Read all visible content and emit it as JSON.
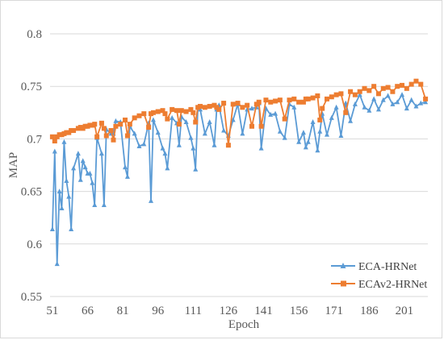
{
  "chart_data": {
    "type": "line",
    "title": "",
    "xlabel": "Epoch",
    "ylabel": "MAP",
    "xlim": [
      50,
      211
    ],
    "ylim": [
      0.55,
      0.8
    ],
    "x_ticks": [
      51,
      66,
      81,
      96,
      111,
      126,
      141,
      156,
      171,
      186,
      201
    ],
    "y_ticks": [
      0.55,
      0.6,
      0.65,
      0.7,
      0.75,
      0.8
    ],
    "grid": "horizontal",
    "legend": "bottom-right",
    "series": [
      {
        "name": "ECA-HRNet",
        "color": "#5b9bd5",
        "marker": "triangle",
        "x": [
          51,
          52,
          53,
          54,
          55,
          56,
          57,
          58,
          59,
          60,
          62,
          63,
          64,
          65,
          66,
          67,
          68,
          69,
          70,
          72,
          73,
          74,
          76,
          77,
          78,
          80,
          82,
          83,
          84,
          86,
          88,
          90,
          92,
          93,
          94,
          96,
          98,
          99,
          100,
          102,
          104,
          105,
          106,
          108,
          110,
          111,
          112,
          113,
          114,
          116,
          118,
          120,
          121,
          122,
          124,
          126,
          128,
          130,
          132,
          134,
          136,
          138,
          139,
          140,
          142,
          144,
          146,
          148,
          150,
          152,
          154,
          156,
          158,
          159,
          160,
          162,
          164,
          165,
          166,
          168,
          170,
          172,
          174,
          176,
          178,
          180,
          182,
          184,
          186,
          188,
          190,
          192,
          194,
          196,
          198,
          200,
          202,
          204,
          206,
          208,
          210
        ],
        "values": [
          0.614,
          0.688,
          0.581,
          0.65,
          0.634,
          0.697,
          0.66,
          0.645,
          0.614,
          0.672,
          0.686,
          0.661,
          0.679,
          0.673,
          0.667,
          0.667,
          0.658,
          0.637,
          0.701,
          0.686,
          0.637,
          0.709,
          0.705,
          0.705,
          0.717,
          0.716,
          0.673,
          0.664,
          0.712,
          0.705,
          0.693,
          0.695,
          0.715,
          0.641,
          0.718,
          0.706,
          0.691,
          0.686,
          0.672,
          0.72,
          0.715,
          0.694,
          0.721,
          0.716,
          0.701,
          0.691,
          0.671,
          0.73,
          0.728,
          0.705,
          0.716,
          0.694,
          0.728,
          0.732,
          0.708,
          0.703,
          0.718,
          0.733,
          0.705,
          0.728,
          0.729,
          0.73,
          0.734,
          0.691,
          0.729,
          0.723,
          0.724,
          0.707,
          0.701,
          0.733,
          0.73,
          0.697,
          0.706,
          0.692,
          0.697,
          0.716,
          0.689,
          0.707,
          0.724,
          0.704,
          0.72,
          0.73,
          0.703,
          0.734,
          0.717,
          0.733,
          0.742,
          0.73,
          0.727,
          0.738,
          0.728,
          0.737,
          0.741,
          0.733,
          0.735,
          0.742,
          0.729,
          0.737,
          0.731,
          0.734,
          0.735
        ]
      },
      {
        "name": "ECAv2-HRNet",
        "color": "#ed7d31",
        "marker": "square",
        "x": [
          51,
          52,
          53,
          54,
          55,
          56,
          57,
          58,
          59,
          60,
          62,
          63,
          64,
          65,
          66,
          67,
          68,
          69,
          70,
          72,
          73,
          74,
          76,
          77,
          78,
          80,
          82,
          83,
          84,
          86,
          88,
          90,
          92,
          93,
          94,
          96,
          98,
          99,
          100,
          102,
          104,
          105,
          106,
          108,
          110,
          111,
          112,
          113,
          114,
          116,
          118,
          120,
          121,
          122,
          124,
          126,
          128,
          130,
          132,
          134,
          136,
          138,
          139,
          140,
          142,
          144,
          146,
          148,
          150,
          152,
          154,
          156,
          158,
          159,
          160,
          162,
          164,
          165,
          166,
          168,
          170,
          172,
          174,
          176,
          178,
          180,
          182,
          184,
          186,
          188,
          190,
          192,
          194,
          196,
          198,
          200,
          202,
          204,
          206,
          208,
          210
        ],
        "values": [
          0.702,
          0.698,
          0.702,
          0.704,
          0.704,
          0.705,
          0.706,
          0.706,
          0.708,
          0.708,
          0.71,
          0.711,
          0.71,
          0.712,
          0.712,
          0.713,
          0.713,
          0.714,
          0.702,
          0.715,
          0.71,
          0.703,
          0.708,
          0.699,
          0.712,
          0.714,
          0.718,
          0.703,
          0.714,
          0.72,
          0.722,
          0.724,
          0.711,
          0.724,
          0.725,
          0.726,
          0.727,
          0.724,
          0.719,
          0.728,
          0.727,
          0.714,
          0.727,
          0.726,
          0.728,
          0.725,
          0.716,
          0.73,
          0.731,
          0.73,
          0.731,
          0.732,
          0.73,
          0.728,
          0.734,
          0.694,
          0.733,
          0.734,
          0.73,
          0.732,
          0.712,
          0.733,
          0.735,
          0.712,
          0.737,
          0.735,
          0.736,
          0.737,
          0.719,
          0.737,
          0.738,
          0.735,
          0.735,
          0.738,
          0.738,
          0.739,
          0.741,
          0.718,
          0.729,
          0.738,
          0.74,
          0.742,
          0.743,
          0.725,
          0.745,
          0.742,
          0.745,
          0.748,
          0.746,
          0.75,
          0.743,
          0.748,
          0.749,
          0.745,
          0.75,
          0.751,
          0.748,
          0.752,
          0.755,
          0.752,
          0.738
        ]
      }
    ]
  }
}
